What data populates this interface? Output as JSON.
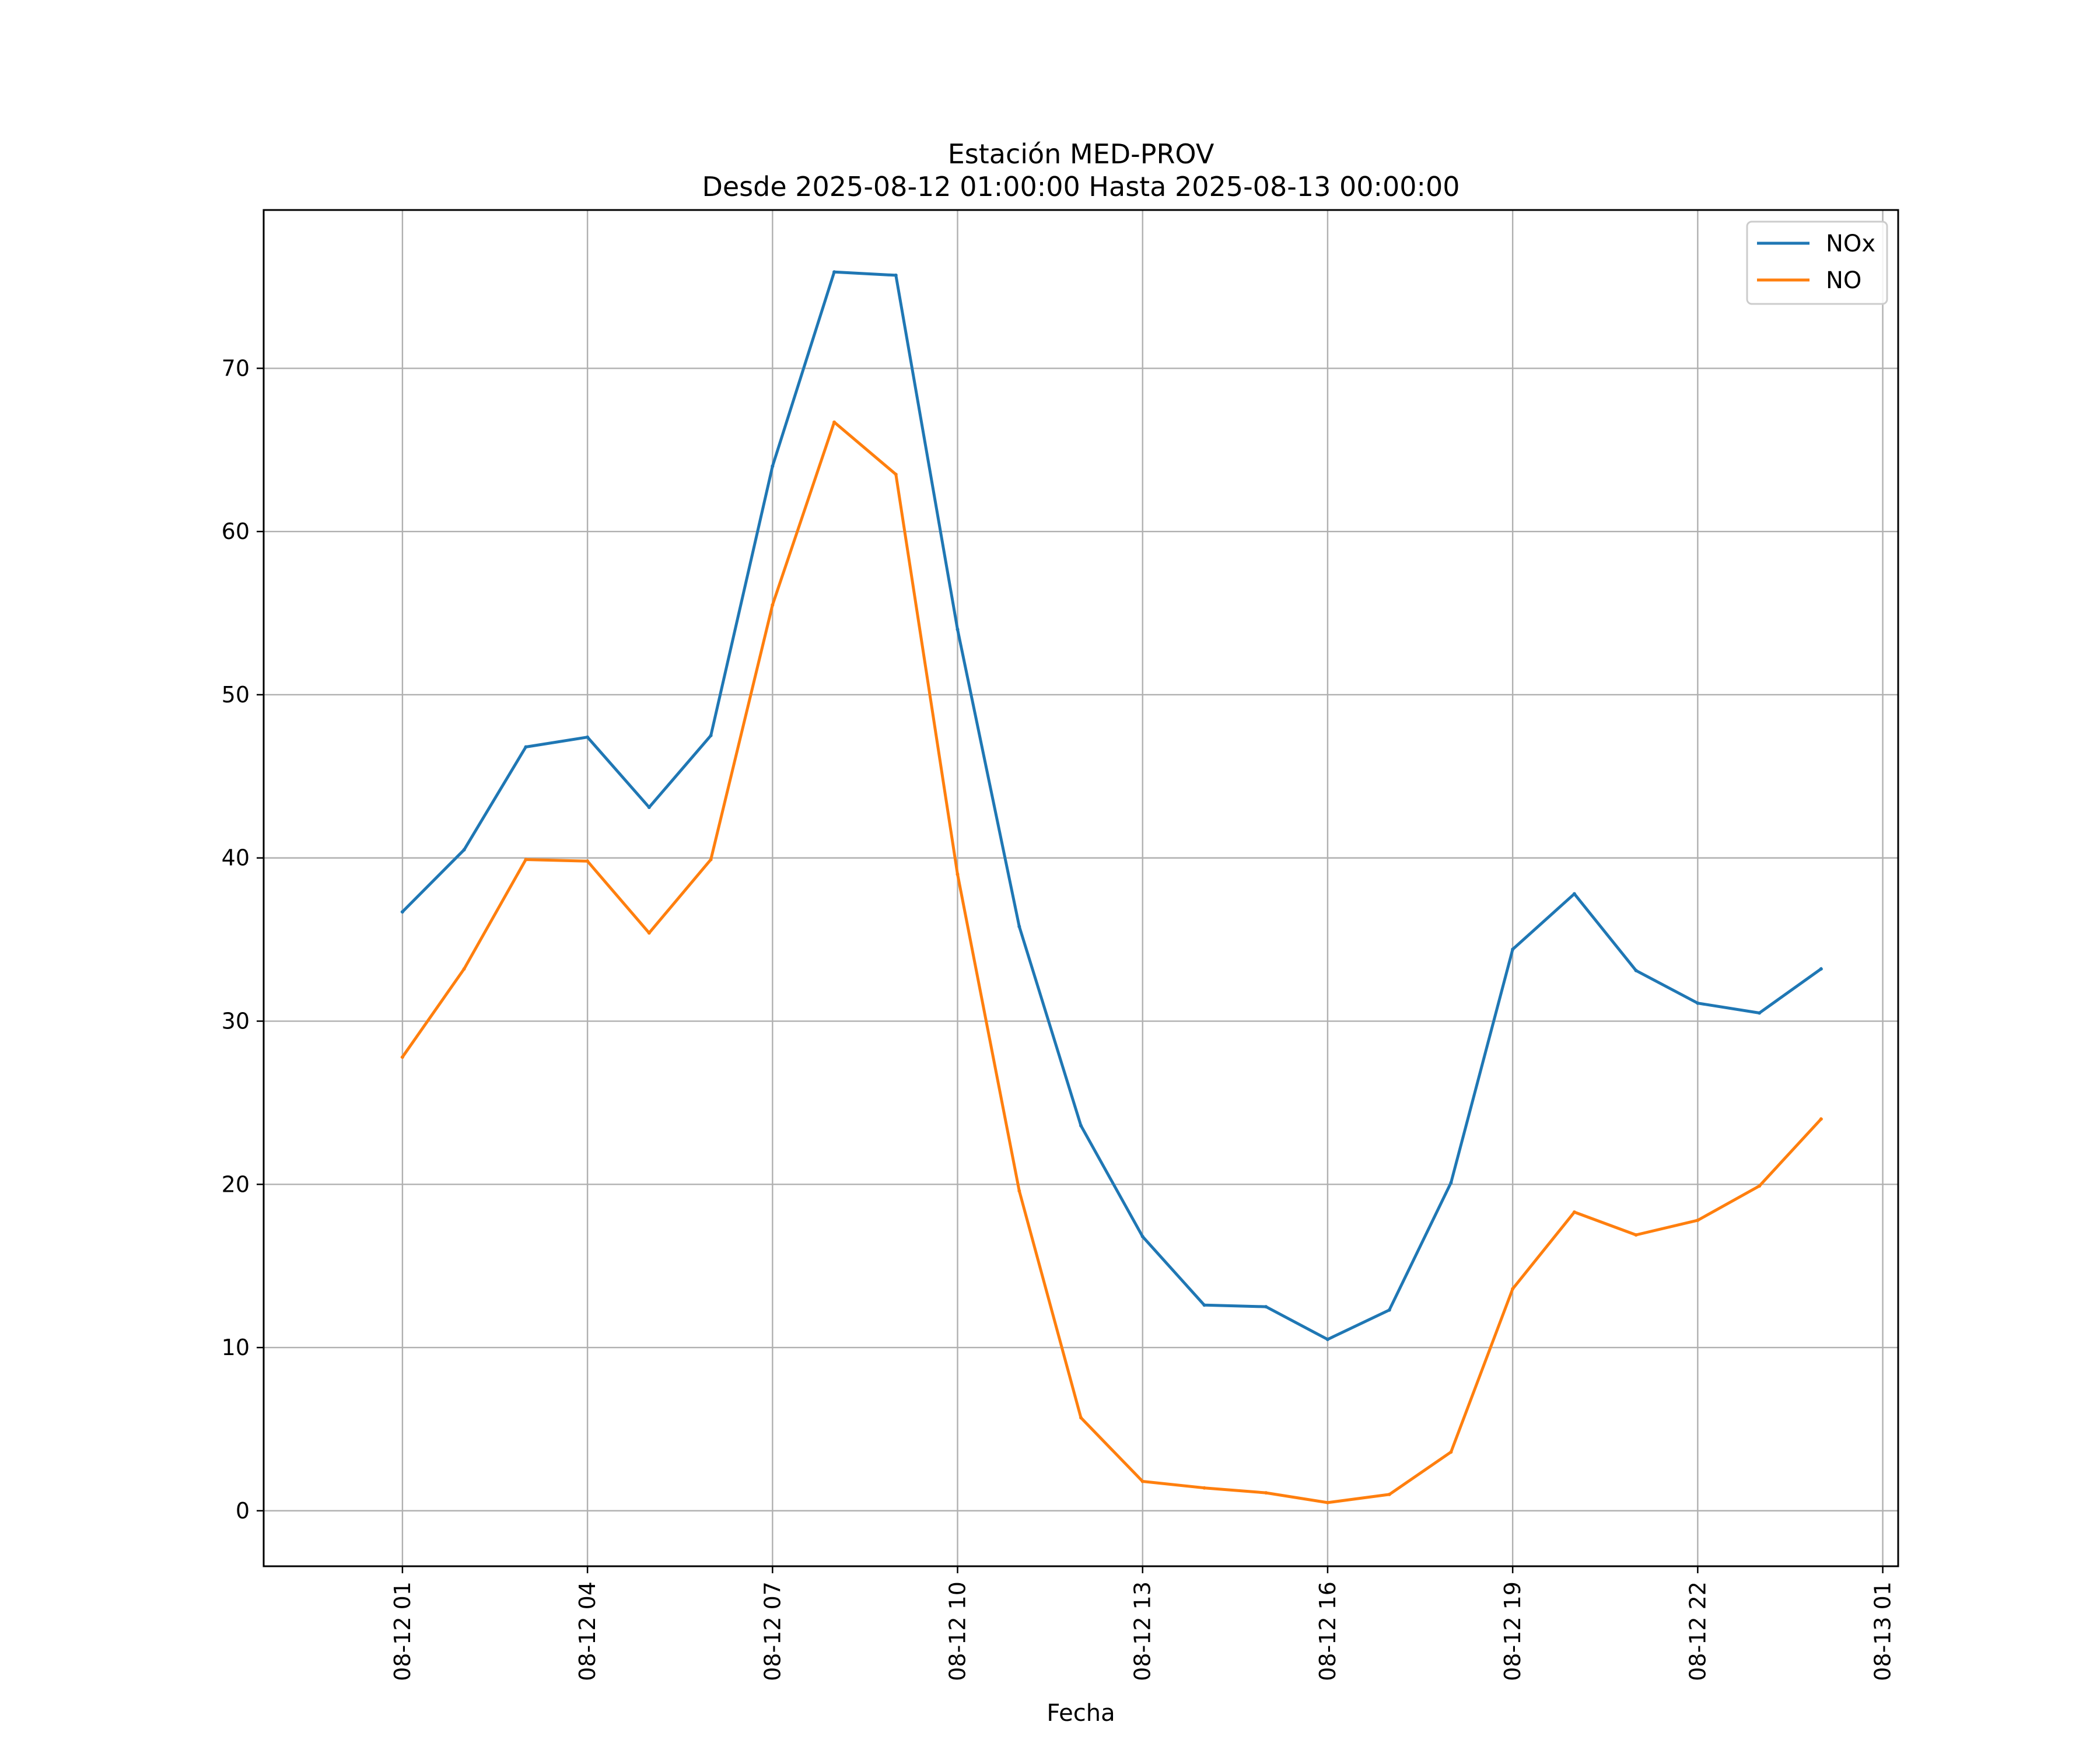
{
  "chart_data": {
    "type": "line",
    "title": "Estación MED-PROV",
    "subtitle": "Desde 2025-08-12 01:00:00 Hasta 2025-08-13 00:00:00",
    "xlabel": "Fecha",
    "ylabel": "",
    "x": [
      "2025-08-12 01:00",
      "2025-08-12 02:00",
      "2025-08-12 03:00",
      "2025-08-12 04:00",
      "2025-08-12 05:00",
      "2025-08-12 06:00",
      "2025-08-12 07:00",
      "2025-08-12 08:00",
      "2025-08-12 09:00",
      "2025-08-12 10:00",
      "2025-08-12 11:00",
      "2025-08-12 12:00",
      "2025-08-12 13:00",
      "2025-08-12 14:00",
      "2025-08-12 15:00",
      "2025-08-12 16:00",
      "2025-08-12 17:00",
      "2025-08-12 18:00",
      "2025-08-12 19:00",
      "2025-08-12 20:00",
      "2025-08-12 21:00",
      "2025-08-12 22:00",
      "2025-08-12 23:00",
      "2025-08-13 00:00"
    ],
    "x_range": [
      "2025-08-11 22:45",
      "2025-08-13 01:15"
    ],
    "x_ticks": [
      {
        "x": "2025-08-12 01:00",
        "label": "08-12 01"
      },
      {
        "x": "2025-08-12 04:00",
        "label": "08-12 04"
      },
      {
        "x": "2025-08-12 07:00",
        "label": "08-12 07"
      },
      {
        "x": "2025-08-12 10:00",
        "label": "08-12 10"
      },
      {
        "x": "2025-08-12 13:00",
        "label": "08-12 13"
      },
      {
        "x": "2025-08-12 16:00",
        "label": "08-12 16"
      },
      {
        "x": "2025-08-12 19:00",
        "label": "08-12 19"
      },
      {
        "x": "2025-08-12 22:00",
        "label": "08-12 22"
      },
      {
        "x": "2025-08-13 01:00",
        "label": "08-13 01"
      }
    ],
    "ylim": [
      -3.4,
      79.7
    ],
    "y_ticks": [
      0,
      10,
      20,
      30,
      40,
      50,
      60,
      70
    ],
    "grid": true,
    "legend_position": "top-right",
    "series": [
      {
        "name": "NOx",
        "color": "#1f77b4",
        "values": [
          36.7,
          40.5,
          46.8,
          47.4,
          43.1,
          47.5,
          64.0,
          75.9,
          75.7,
          54.0,
          35.8,
          23.6,
          16.8,
          12.6,
          12.5,
          10.5,
          12.3,
          20.1,
          34.4,
          37.8,
          33.1,
          31.1,
          30.5,
          33.2
        ]
      },
      {
        "name": "NO",
        "color": "#ff7f0e",
        "values": [
          27.8,
          33.2,
          39.9,
          39.8,
          35.4,
          39.9,
          55.5,
          66.7,
          63.5,
          39.0,
          19.6,
          5.7,
          1.8,
          1.4,
          1.1,
          0.5,
          1.0,
          3.6,
          13.6,
          18.3,
          16.9,
          17.8,
          19.9,
          24.0
        ]
      }
    ]
  }
}
